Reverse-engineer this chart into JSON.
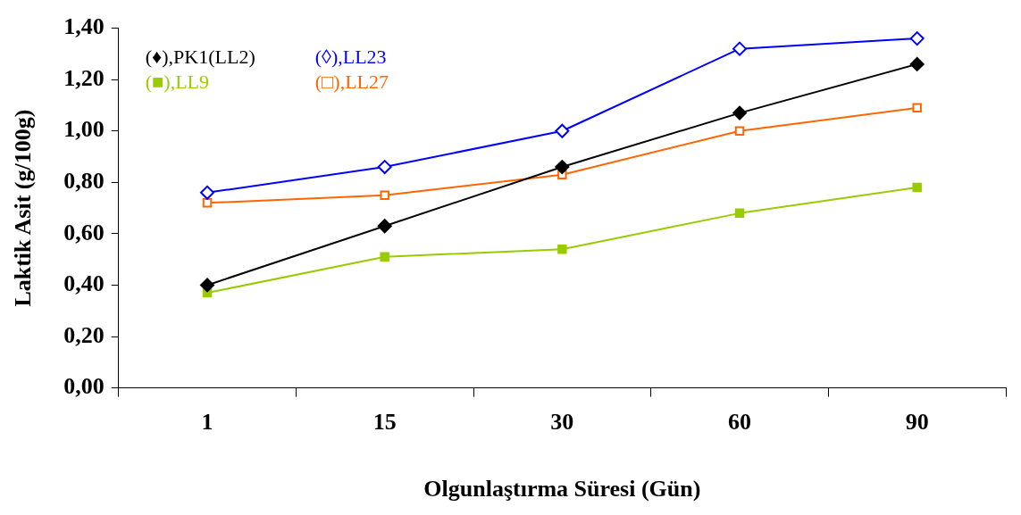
{
  "chart_data": {
    "type": "line",
    "xlabel": "Olgunlaştırma Süresi (Gün)",
    "ylabel": "Laktik Asit (g/100g)",
    "categories": [
      "1",
      "15",
      "30",
      "60",
      "90"
    ],
    "series": [
      {
        "name": "(♦),PK1(LL2)",
        "color": "#000000",
        "marker": "diamond",
        "values": [
          0.4,
          0.63,
          0.86,
          1.07,
          1.26
        ]
      },
      {
        "name": "(◊),LL23",
        "color": "#0000ff",
        "marker": "diamond",
        "values": [
          0.76,
          0.86,
          1.0,
          1.32,
          1.36
        ]
      },
      {
        "name": "(■),LL9",
        "color": "#99cc00",
        "marker": "square",
        "values": [
          0.37,
          0.51,
          0.54,
          0.68,
          0.78
        ]
      },
      {
        "name": "(□),LL27",
        "color": "#ff6600",
        "marker": "square",
        "values": [
          0.72,
          0.75,
          0.83,
          1.0,
          1.09
        ]
      }
    ],
    "ylim": [
      0,
      1.4
    ],
    "yticks": [
      {
        "value": 0,
        "label": "0,00"
      },
      {
        "value": 0.2,
        "label": "0,20"
      },
      {
        "value": 0.4,
        "label": "0,40"
      },
      {
        "value": 0.6,
        "label": "0,60"
      },
      {
        "value": 0.8,
        "label": "0,80"
      },
      {
        "value": 1.0,
        "label": "1,00"
      },
      {
        "value": 1.2,
        "label": "1,20"
      },
      {
        "value": 1.4,
        "label": "1,40"
      }
    ],
    "grid": false,
    "legend": "top left",
    "line_style": "solid"
  }
}
